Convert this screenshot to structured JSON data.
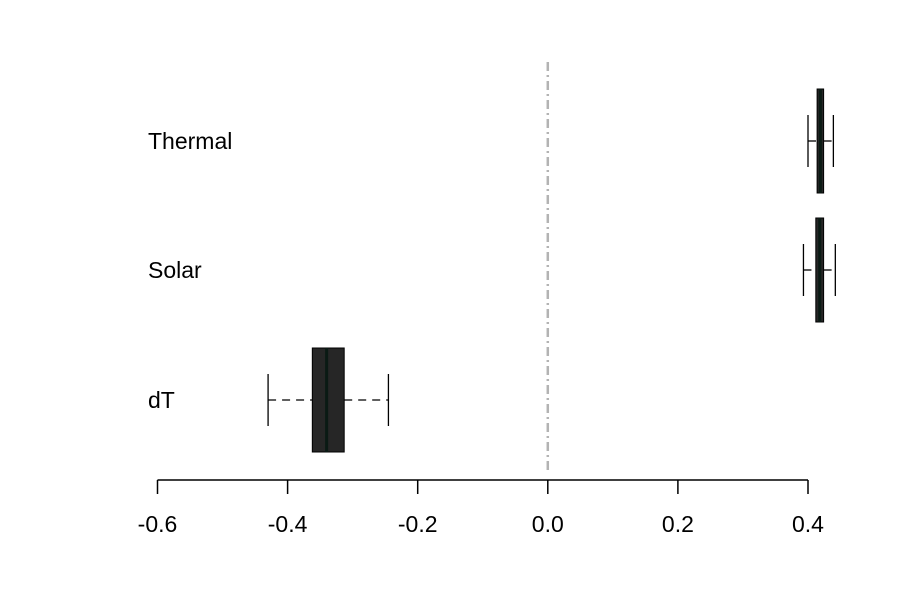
{
  "chart_data": {
    "type": "boxplot",
    "orientation": "horizontal",
    "title": "",
    "xlabel": "",
    "ylabel": "",
    "xlim": [
      -0.6,
      0.4
    ],
    "x_ticks": [
      -0.6,
      -0.4,
      -0.2,
      0.0,
      0.2,
      0.4
    ],
    "x_tick_labels": [
      "-0.6",
      "-0.4",
      "-0.2",
      "0.0",
      "0.2",
      "0.4"
    ],
    "reference_line": {
      "x": 0.0,
      "style": "dash-dot",
      "color": "#b3b3b3"
    },
    "box_fill": "#262626",
    "median_color": "#0a1a14",
    "series": [
      {
        "name": "Thermal",
        "whisker_low": 0.4,
        "q1": 0.414,
        "median": 0.419,
        "q3": 0.424,
        "whisker_high": 0.439
      },
      {
        "name": "Solar",
        "whisker_low": 0.393,
        "q1": 0.412,
        "median": 0.418,
        "q3": 0.424,
        "whisker_high": 0.442
      },
      {
        "name": "dT",
        "whisker_low": -0.43,
        "q1": -0.362,
        "median": -0.34,
        "q3": -0.313,
        "whisker_high": -0.245
      }
    ]
  }
}
